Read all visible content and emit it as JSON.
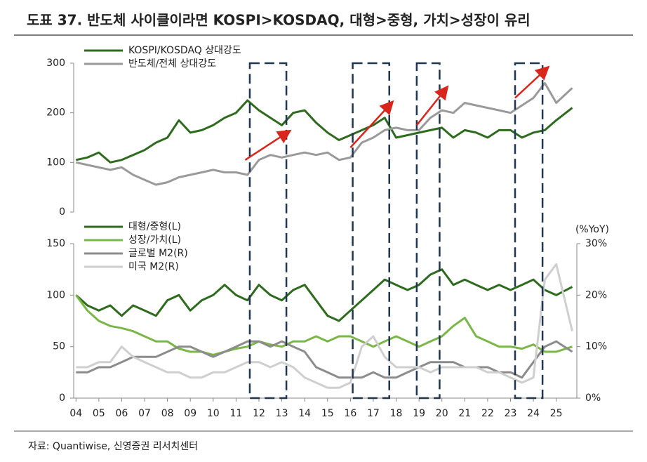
{
  "title": "도표 37. 반도체 사이클이라면 KOSPI>KOSDAQ, 대형>중형, 가치>성장이 유리",
  "source": "자료: Quantiwise, 신영증권 리서치센터",
  "chart_data": [
    {
      "type": "line",
      "xlim": [
        2003.9,
        2025.9
      ],
      "ylim": [
        0,
        300
      ],
      "yticks": [
        0,
        100,
        200,
        300
      ],
      "highlights": [
        [
          2011.6,
          2013.2
        ],
        [
          2016.1,
          2017.7
        ],
        [
          2018.9,
          2019.9
        ],
        [
          2023.2,
          2024.4
        ]
      ],
      "arrows": [
        [
          2011.4,
          105,
          2013.3,
          162
        ],
        [
          2016.0,
          130,
          2017.8,
          220
        ],
        [
          2018.9,
          175,
          2020.2,
          250
        ],
        [
          2023.2,
          230,
          2024.6,
          290
        ]
      ],
      "x": [
        2004,
        2004.5,
        2005,
        2005.5,
        2006,
        2006.5,
        2007,
        2007.5,
        2008,
        2008.5,
        2009,
        2009.5,
        2010,
        2010.5,
        2011,
        2011.5,
        2012,
        2012.5,
        2013,
        2013.5,
        2014,
        2014.5,
        2015,
        2015.5,
        2016,
        2016.5,
        2017,
        2017.5,
        2018,
        2018.5,
        2019,
        2019.5,
        2020,
        2020.5,
        2021,
        2021.5,
        2022,
        2022.5,
        2023,
        2023.5,
        2024,
        2024.5,
        2025,
        2025.7
      ],
      "series": [
        {
          "name": "KOSPI/KOSDAQ 상대강도",
          "color": "#2e6b1e",
          "values": [
            105,
            110,
            120,
            100,
            105,
            115,
            125,
            140,
            150,
            185,
            160,
            165,
            175,
            190,
            200,
            225,
            205,
            190,
            175,
            200,
            205,
            180,
            160,
            145,
            155,
            165,
            175,
            190,
            150,
            155,
            160,
            165,
            170,
            150,
            165,
            160,
            150,
            165,
            165,
            150,
            160,
            165,
            185,
            210
          ]
        },
        {
          "name": "반도체/전체 상대강도",
          "color": "#9a9a9a",
          "values": [
            100,
            95,
            90,
            85,
            90,
            75,
            65,
            55,
            60,
            70,
            75,
            80,
            85,
            80,
            80,
            75,
            105,
            115,
            110,
            115,
            120,
            115,
            120,
            105,
            110,
            140,
            150,
            165,
            170,
            165,
            165,
            190,
            205,
            200,
            220,
            215,
            210,
            205,
            200,
            215,
            230,
            260,
            220,
            250
          ]
        }
      ]
    },
    {
      "type": "line",
      "xlim": [
        2003.9,
        2025.9
      ],
      "ylim": [
        0,
        150
      ],
      "yticks": [
        0,
        50,
        100,
        150
      ],
      "y2lim": [
        0,
        30
      ],
      "y2ticks": [
        {
          "value": 0,
          "label": "0%"
        },
        {
          "value": 10,
          "label": "10%"
        },
        {
          "value": 20,
          "label": "20%"
        },
        {
          "value": 30,
          "label": "30%"
        }
      ],
      "y2_label": "(%YoY)",
      "xticks": [
        {
          "value": 2004,
          "label": "04"
        },
        {
          "value": 2005,
          "label": "05"
        },
        {
          "value": 2006,
          "label": "06"
        },
        {
          "value": 2007,
          "label": "07"
        },
        {
          "value": 2008,
          "label": "08"
        },
        {
          "value": 2009,
          "label": "09"
        },
        {
          "value": 2010,
          "label": "10"
        },
        {
          "value": 2011,
          "label": "11"
        },
        {
          "value": 2012,
          "label": "12"
        },
        {
          "value": 2013,
          "label": "13"
        },
        {
          "value": 2014,
          "label": "14"
        },
        {
          "value": 2015,
          "label": "15"
        },
        {
          "value": 2016,
          "label": "16"
        },
        {
          "value": 2017,
          "label": "17"
        },
        {
          "value": 2018,
          "label": "18"
        },
        {
          "value": 2019,
          "label": "19"
        },
        {
          "value": 2020,
          "label": "20"
        },
        {
          "value": 2021,
          "label": "21"
        },
        {
          "value": 2022,
          "label": "22"
        },
        {
          "value": 2023,
          "label": "23"
        },
        {
          "value": 2024,
          "label": "24"
        },
        {
          "value": 2025,
          "label": "25"
        }
      ],
      "x": [
        2004,
        2004.5,
        2005,
        2005.5,
        2006,
        2006.5,
        2007,
        2007.5,
        2008,
        2008.5,
        2009,
        2009.5,
        2010,
        2010.5,
        2011,
        2011.5,
        2012,
        2012.5,
        2013,
        2013.5,
        2014,
        2014.5,
        2015,
        2015.5,
        2016,
        2016.5,
        2017,
        2017.5,
        2018,
        2018.5,
        2019,
        2019.5,
        2020,
        2020.5,
        2021,
        2021.5,
        2022,
        2022.5,
        2023,
        2023.5,
        2024,
        2024.5,
        2025,
        2025.7
      ],
      "series": [
        {
          "name": "대형/중형(L)",
          "color": "#2e6b1e",
          "values": [
            100,
            90,
            85,
            90,
            80,
            90,
            85,
            80,
            95,
            100,
            85,
            95,
            100,
            110,
            100,
            95,
            110,
            100,
            95,
            105,
            110,
            95,
            80,
            75,
            85,
            95,
            105,
            115,
            110,
            105,
            110,
            120,
            125,
            110,
            115,
            110,
            105,
            110,
            105,
            110,
            115,
            105,
            100,
            108
          ]
        },
        {
          "name": "성장/가치(L)",
          "color": "#7ab648",
          "values": [
            100,
            85,
            75,
            70,
            68,
            65,
            60,
            55,
            55,
            48,
            45,
            45,
            42,
            45,
            48,
            50,
            55,
            52,
            50,
            55,
            55,
            60,
            55,
            60,
            60,
            55,
            50,
            55,
            60,
            55,
            50,
            55,
            60,
            70,
            78,
            60,
            55,
            50,
            50,
            48,
            52,
            45,
            45,
            50
          ]
        },
        {
          "name": "글로벌 M2(R)",
          "color": "#8c8c8c",
          "axis": "y2",
          "values": [
            5,
            5,
            6,
            6,
            7,
            8,
            8,
            8,
            9,
            10,
            10,
            9,
            8,
            9,
            10,
            11,
            11,
            10,
            11,
            10,
            9,
            6,
            5,
            4,
            4,
            4,
            5,
            4,
            4,
            5,
            6,
            7,
            7,
            7,
            6,
            6,
            6,
            5,
            5,
            4,
            7,
            10,
            11,
            9
          ]
        },
        {
          "name": "미국 M2(R)",
          "color": "#cfcfcf",
          "axis": "y2",
          "values": [
            6,
            6,
            7,
            7,
            10,
            8,
            7,
            6,
            5,
            5,
            4,
            4,
            5,
            5,
            6,
            7,
            7,
            6,
            7,
            6,
            4,
            3,
            2,
            2,
            3,
            10,
            12,
            8,
            6,
            6,
            6,
            5,
            6,
            6,
            6,
            6,
            5,
            5,
            4,
            3,
            4,
            23,
            26,
            13
          ]
        }
      ]
    }
  ]
}
